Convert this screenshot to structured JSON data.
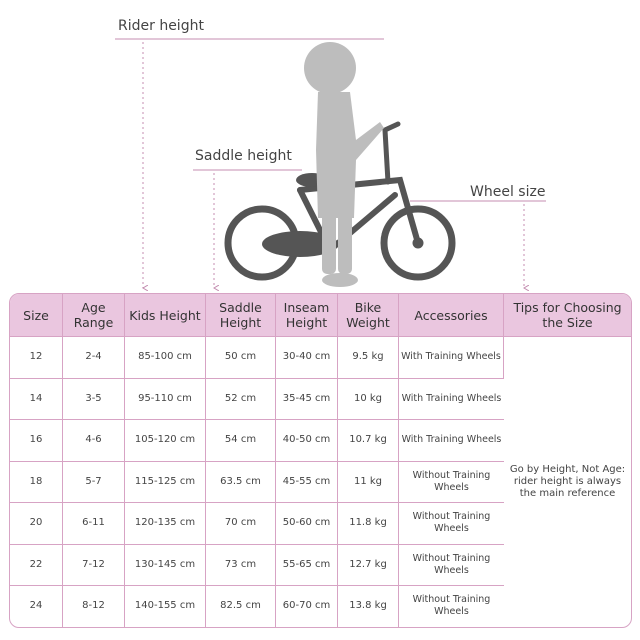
{
  "labels": {
    "rider_height": "Rider height",
    "saddle_height": "Saddle height",
    "wheel_size": "Wheel size"
  },
  "colors": {
    "accent": "#d7a3c4",
    "header_bg": "#eac6df",
    "bike": "#555555",
    "rider": "#bdbdbd"
  },
  "table": {
    "headers": [
      "Size",
      "Age Range",
      "Kids Height",
      "Saddle Height",
      "Inseam Height",
      "Bike Weight",
      "Accessories",
      "Tips for Choosing the Size"
    ],
    "rows": [
      [
        "12",
        "2-4",
        "85-100 cm",
        "50 cm",
        "30-40 cm",
        "9.5 kg",
        "With Training Wheels"
      ],
      [
        "14",
        "3-5",
        "95-110 cm",
        "52 cm",
        "35-45 cm",
        "10 kg",
        "With Training Wheels"
      ],
      [
        "16",
        "4-6",
        "105-120 cm",
        "54 cm",
        "40-50 cm",
        "10.7 kg",
        "With Training Wheels"
      ],
      [
        "18",
        "5-7",
        "115-125 cm",
        "63.5 cm",
        "45-55 cm",
        "11 kg",
        "Without Training Wheels"
      ],
      [
        "20",
        "6-11",
        "120-135 cm",
        "70 cm",
        "50-60 cm",
        "11.8 kg",
        "Without Training Wheels"
      ],
      [
        "22",
        "7-12",
        "130-145 cm",
        "73 cm",
        "55-65 cm",
        "12.7 kg",
        "Without Training Wheels"
      ],
      [
        "24",
        "8-12",
        "140-155 cm",
        "82.5 cm",
        "60-70 cm",
        "13.8 kg",
        "Without Training Wheels"
      ]
    ],
    "tip": "Go by Height, Not Age: rider height is always the main reference"
  }
}
